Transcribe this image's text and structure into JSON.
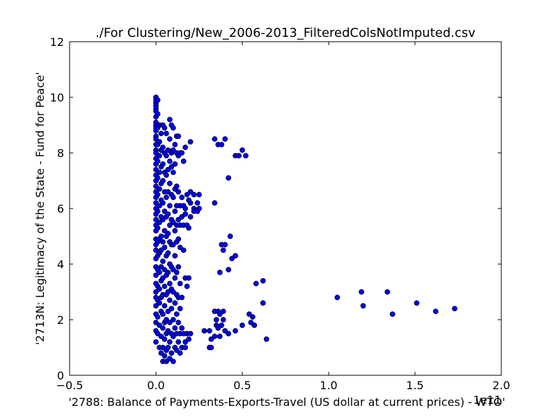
{
  "chart_data": {
    "type": "scatter",
    "title": "./For Clustering/New_2006-2013_FilteredColsNotImputed.csv",
    "xlabel": "'2788: Balance of Payments-Exports-Travel (US dollar at current prices) - WTO'",
    "ylabel": "'2713N: Legitimacy of the State - Fund for Peace'",
    "x_offset_label": "1e11",
    "xlim": [
      -0.5,
      2.0
    ],
    "ylim": [
      0,
      12
    ],
    "x_ticks": [
      "−0.5",
      "0.0",
      "0.5",
      "1.0",
      "1.5",
      "2.0"
    ],
    "x_tick_values": [
      -0.5,
      0.0,
      0.5,
      1.0,
      1.5,
      2.0
    ],
    "y_ticks": [
      "0",
      "2",
      "4",
      "6",
      "8",
      "10",
      "12"
    ],
    "y_tick_values": [
      0,
      2,
      4,
      6,
      8,
      10,
      12
    ],
    "grid": false,
    "marker_color": "#0000ff",
    "marker_edge": "#000000",
    "points": [
      [
        0.0,
        10.0
      ],
      [
        0.0,
        9.9
      ],
      [
        0.0,
        9.8
      ],
      [
        0.0,
        9.7
      ],
      [
        0.0,
        9.6
      ],
      [
        0.0,
        9.5
      ],
      [
        0.0,
        9.3
      ],
      [
        0.0,
        9.1
      ],
      [
        0.0,
        9.0
      ],
      [
        0.0,
        8.9
      ],
      [
        0.0,
        8.8
      ],
      [
        0.0,
        8.6
      ],
      [
        0.0,
        8.5
      ],
      [
        0.0,
        8.3
      ],
      [
        0.0,
        8.1
      ],
      [
        0.0,
        8.0
      ],
      [
        0.0,
        7.8
      ],
      [
        0.0,
        7.6
      ],
      [
        0.0,
        7.4
      ],
      [
        0.0,
        7.2
      ],
      [
        0.0,
        7.0
      ],
      [
        0.0,
        6.8
      ],
      [
        0.0,
        6.6
      ],
      [
        0.0,
        6.4
      ],
      [
        0.0,
        6.2
      ],
      [
        0.0,
        6.0
      ],
      [
        0.0,
        5.8
      ],
      [
        0.0,
        5.6
      ],
      [
        0.0,
        5.4
      ],
      [
        0.0,
        5.2
      ],
      [
        0.0,
        4.9
      ],
      [
        0.0,
        4.7
      ],
      [
        0.0,
        4.5
      ],
      [
        0.0,
        4.2
      ],
      [
        0.0,
        3.9
      ],
      [
        0.0,
        3.6
      ],
      [
        0.0,
        3.3
      ],
      [
        0.0,
        3.0
      ],
      [
        0.0,
        2.8
      ],
      [
        0.0,
        2.5
      ],
      [
        0.0,
        2.2
      ],
      [
        0.0,
        1.9
      ],
      [
        0.0,
        1.6
      ],
      [
        0.0,
        1.2
      ],
      [
        0.01,
        9.9
      ],
      [
        0.01,
        9.4
      ],
      [
        0.01,
        8.9
      ],
      [
        0.01,
        8.3
      ],
      [
        0.01,
        7.7
      ],
      [
        0.01,
        7.1
      ],
      [
        0.01,
        6.5
      ],
      [
        0.01,
        5.9
      ],
      [
        0.01,
        5.3
      ],
      [
        0.01,
        4.8
      ],
      [
        0.01,
        4.3
      ],
      [
        0.01,
        3.8
      ],
      [
        0.01,
        3.2
      ],
      [
        0.01,
        2.7
      ],
      [
        0.01,
        2.1
      ],
      [
        0.01,
        1.5
      ],
      [
        0.02,
        9.0
      ],
      [
        0.02,
        8.4
      ],
      [
        0.02,
        7.9
      ],
      [
        0.02,
        7.3
      ],
      [
        0.02,
        6.7
      ],
      [
        0.02,
        6.1
      ],
      [
        0.02,
        5.5
      ],
      [
        0.02,
        4.9
      ],
      [
        0.02,
        4.4
      ],
      [
        0.02,
        3.7
      ],
      [
        0.02,
        3.1
      ],
      [
        0.02,
        2.6
      ],
      [
        0.02,
        1.8
      ],
      [
        0.02,
        1.0
      ],
      [
        0.03,
        8.7
      ],
      [
        0.03,
        8.1
      ],
      [
        0.03,
        7.5
      ],
      [
        0.03,
        6.9
      ],
      [
        0.03,
        6.3
      ],
      [
        0.03,
        5.7
      ],
      [
        0.03,
        5.0
      ],
      [
        0.03,
        4.5
      ],
      [
        0.03,
        3.9
      ],
      [
        0.03,
        3.4
      ],
      [
        0.03,
        2.8
      ],
      [
        0.03,
        2.3
      ],
      [
        0.03,
        1.4
      ],
      [
        0.03,
        0.8
      ],
      [
        0.04,
        9.0
      ],
      [
        0.04,
        8.2
      ],
      [
        0.04,
        7.6
      ],
      [
        0.04,
        7.0
      ],
      [
        0.04,
        6.2
      ],
      [
        0.04,
        5.6
      ],
      [
        0.04,
        4.8
      ],
      [
        0.04,
        4.1
      ],
      [
        0.04,
        3.5
      ],
      [
        0.04,
        2.9
      ],
      [
        0.04,
        2.2
      ],
      [
        0.04,
        1.7
      ],
      [
        0.04,
        1.0
      ],
      [
        0.04,
        0.5
      ],
      [
        0.05,
        8.9
      ],
      [
        0.05,
        8.0
      ],
      [
        0.05,
        7.3
      ],
      [
        0.05,
        6.6
      ],
      [
        0.05,
        5.9
      ],
      [
        0.05,
        5.2
      ],
      [
        0.05,
        4.6
      ],
      [
        0.05,
        3.8
      ],
      [
        0.05,
        3.2
      ],
      [
        0.05,
        2.5
      ],
      [
        0.05,
        1.9
      ],
      [
        0.05,
        1.3
      ],
      [
        0.05,
        0.7
      ],
      [
        0.06,
        8.7
      ],
      [
        0.06,
        7.9
      ],
      [
        0.06,
        7.2
      ],
      [
        0.06,
        6.4
      ],
      [
        0.06,
        5.7
      ],
      [
        0.06,
        5.0
      ],
      [
        0.06,
        4.3
      ],
      [
        0.06,
        3.6
      ],
      [
        0.06,
        2.9
      ],
      [
        0.06,
        2.0
      ],
      [
        0.06,
        1.5
      ],
      [
        0.06,
        0.9
      ],
      [
        0.06,
        0.5
      ],
      [
        0.07,
        8.1
      ],
      [
        0.07,
        7.4
      ],
      [
        0.07,
        6.6
      ],
      [
        0.07,
        5.8
      ],
      [
        0.07,
        5.1
      ],
      [
        0.07,
        4.4
      ],
      [
        0.07,
        3.7
      ],
      [
        0.07,
        3.0
      ],
      [
        0.07,
        2.3
      ],
      [
        0.07,
        1.6
      ],
      [
        0.07,
        1.0
      ],
      [
        0.08,
        9.2
      ],
      [
        0.08,
        8.5
      ],
      [
        0.08,
        7.7
      ],
      [
        0.08,
        6.9
      ],
      [
        0.08,
        6.1
      ],
      [
        0.08,
        5.4
      ],
      [
        0.08,
        4.8
      ],
      [
        0.08,
        4.0
      ],
      [
        0.08,
        3.3
      ],
      [
        0.08,
        2.7
      ],
      [
        0.08,
        1.9
      ],
      [
        0.08,
        1.2
      ],
      [
        0.08,
        0.6
      ],
      [
        0.09,
        9.0
      ],
      [
        0.09,
        8.0
      ],
      [
        0.09,
        7.5
      ],
      [
        0.09,
        6.5
      ],
      [
        0.09,
        5.6
      ],
      [
        0.09,
        4.7
      ],
      [
        0.09,
        3.9
      ],
      [
        0.09,
        3.1
      ],
      [
        0.09,
        2.4
      ],
      [
        0.09,
        1.5
      ],
      [
        0.09,
        0.8
      ],
      [
        0.1,
        8.9
      ],
      [
        0.1,
        8.1
      ],
      [
        0.1,
        7.3
      ],
      [
        0.1,
        6.4
      ],
      [
        0.1,
        5.5
      ],
      [
        0.1,
        4.7
      ],
      [
        0.1,
        3.8
      ],
      [
        0.1,
        3.0
      ],
      [
        0.1,
        2.0
      ],
      [
        0.1,
        1.4
      ],
      [
        0.1,
        0.5
      ],
      [
        0.11,
        8.3
      ],
      [
        0.11,
        7.6
      ],
      [
        0.11,
        6.7
      ],
      [
        0.11,
        5.9
      ],
      [
        0.11,
        5.2
      ],
      [
        0.11,
        4.3
      ],
      [
        0.11,
        3.5
      ],
      [
        0.11,
        2.6
      ],
      [
        0.11,
        1.7
      ],
      [
        0.11,
        1.0
      ],
      [
        0.12,
        8.6
      ],
      [
        0.12,
        8.0
      ],
      [
        0.12,
        6.8
      ],
      [
        0.12,
        6.1
      ],
      [
        0.12,
        5.4
      ],
      [
        0.12,
        4.8
      ],
      [
        0.12,
        3.7
      ],
      [
        0.12,
        2.9
      ],
      [
        0.12,
        2.2
      ],
      [
        0.12,
        1.5
      ],
      [
        0.12,
        0.9
      ],
      [
        0.13,
        8.6
      ],
      [
        0.13,
        7.9
      ],
      [
        0.13,
        6.6
      ],
      [
        0.13,
        5.6
      ],
      [
        0.13,
        4.9
      ],
      [
        0.13,
        3.9
      ],
      [
        0.13,
        2.8
      ],
      [
        0.13,
        1.9
      ],
      [
        0.13,
        1.2
      ],
      [
        0.14,
        8.0
      ],
      [
        0.14,
        6.1
      ],
      [
        0.14,
        5.4
      ],
      [
        0.14,
        4.6
      ],
      [
        0.14,
        3.3
      ],
      [
        0.14,
        2.4
      ],
      [
        0.14,
        1.5
      ],
      [
        0.14,
        0.8
      ],
      [
        0.15,
        8.0
      ],
      [
        0.15,
        6.4
      ],
      [
        0.15,
        5.7
      ],
      [
        0.15,
        2.8
      ],
      [
        0.15,
        1.7
      ],
      [
        0.15,
        1.0
      ],
      [
        0.16,
        7.7
      ],
      [
        0.16,
        6.1
      ],
      [
        0.16,
        5.4
      ],
      [
        0.16,
        4.5
      ],
      [
        0.16,
        1.5
      ],
      [
        0.17,
        8.2
      ],
      [
        0.17,
        6.0
      ],
      [
        0.17,
        5.8
      ],
      [
        0.17,
        3.5
      ],
      [
        0.17,
        1.2
      ],
      [
        0.17,
        1.0
      ],
      [
        0.18,
        6.5
      ],
      [
        0.18,
        5.4
      ],
      [
        0.18,
        3.2
      ],
      [
        0.18,
        1.5
      ],
      [
        0.19,
        6.3
      ],
      [
        0.19,
        5.3
      ],
      [
        0.19,
        3.5
      ],
      [
        0.19,
        1.3
      ],
      [
        0.2,
        8.4
      ],
      [
        0.2,
        6.6
      ],
      [
        0.2,
        6.2
      ],
      [
        0.2,
        5.7
      ],
      [
        0.2,
        1.5
      ],
      [
        0.22,
        6.5
      ],
      [
        0.22,
        6.0
      ],
      [
        0.22,
        5.9
      ],
      [
        0.24,
        6.2
      ],
      [
        0.24,
        5.9
      ],
      [
        0.25,
        6.5
      ],
      [
        0.25,
        6.0
      ],
      [
        0.28,
        1.6
      ],
      [
        0.31,
        1.6
      ],
      [
        0.31,
        1.0
      ],
      [
        0.32,
        1.3
      ],
      [
        0.32,
        1.0
      ],
      [
        0.34,
        8.5
      ],
      [
        0.34,
        6.2
      ],
      [
        0.34,
        2.3
      ],
      [
        0.34,
        1.4
      ],
      [
        0.35,
        2.0
      ],
      [
        0.35,
        1.8
      ],
      [
        0.36,
        8.3
      ],
      [
        0.36,
        2.3
      ],
      [
        0.36,
        1.7
      ],
      [
        0.37,
        3.7
      ],
      [
        0.37,
        2.2
      ],
      [
        0.37,
        1.4
      ],
      [
        0.38,
        8.3
      ],
      [
        0.38,
        4.7
      ],
      [
        0.38,
        1.8
      ],
      [
        0.39,
        4.5
      ],
      [
        0.39,
        2.3
      ],
      [
        0.39,
        2.0
      ],
      [
        0.4,
        8.5
      ],
      [
        0.4,
        4.7
      ],
      [
        0.4,
        1.6
      ],
      [
        0.42,
        7.1
      ],
      [
        0.42,
        3.8
      ],
      [
        0.42,
        1.5
      ],
      [
        0.43,
        5.0
      ],
      [
        0.44,
        4.2
      ],
      [
        0.46,
        7.9
      ],
      [
        0.46,
        4.3
      ],
      [
        0.46,
        1.6
      ],
      [
        0.48,
        7.9
      ],
      [
        0.5,
        8.1
      ],
      [
        0.5,
        1.8
      ],
      [
        0.52,
        7.9
      ],
      [
        0.54,
        2.2
      ],
      [
        0.55,
        1.9
      ],
      [
        0.56,
        2.1
      ],
      [
        0.57,
        1.8
      ],
      [
        0.58,
        3.3
      ],
      [
        0.62,
        2.6
      ],
      [
        0.62,
        3.4
      ],
      [
        0.64,
        1.3
      ],
      [
        1.05,
        2.8
      ],
      [
        1.19,
        3.0
      ],
      [
        1.2,
        2.5
      ],
      [
        1.34,
        3.0
      ],
      [
        1.37,
        2.2
      ],
      [
        1.51,
        2.6
      ],
      [
        1.62,
        2.3
      ],
      [
        1.73,
        2.4
      ]
    ]
  }
}
